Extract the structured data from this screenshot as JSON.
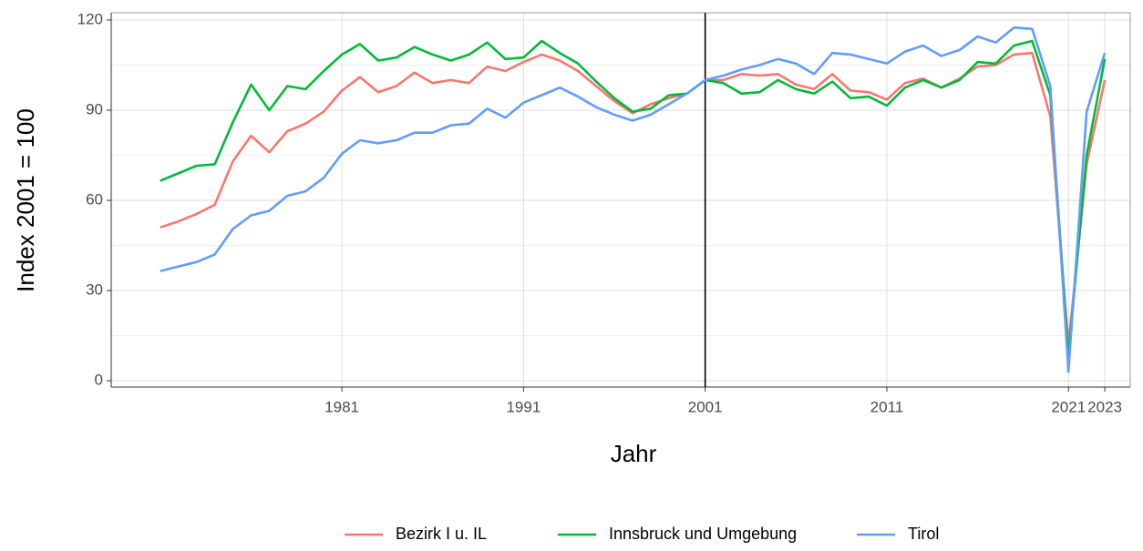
{
  "chart_data": {
    "type": "line",
    "x_label": "Jahr",
    "y_label": "Index 2001 = 100",
    "x": [
      1971,
      1972,
      1973,
      1974,
      1975,
      1976,
      1977,
      1978,
      1979,
      1980,
      1981,
      1982,
      1983,
      1984,
      1985,
      1986,
      1987,
      1988,
      1989,
      1990,
      1991,
      1992,
      1993,
      1994,
      1995,
      1996,
      1997,
      1998,
      1999,
      2000,
      2001,
      2002,
      2003,
      2004,
      2005,
      2006,
      2007,
      2008,
      2009,
      2010,
      2011,
      2012,
      2013,
      2014,
      2015,
      2016,
      2017,
      2018,
      2019,
      2020,
      2021,
      2022,
      2023
    ],
    "series": [
      {
        "name": "Bezirk I u. IL",
        "color": "#f8766d",
        "values": [
          51,
          53,
          55.5,
          58.5,
          73,
          81.5,
          76,
          83,
          85.5,
          89.5,
          96.5,
          101,
          96,
          98,
          102.5,
          99,
          100,
          99,
          104.5,
          103,
          106,
          108.5,
          106.5,
          103,
          98,
          93,
          89,
          92,
          94,
          95.5,
          100,
          100,
          102,
          101.5,
          102,
          98.5,
          97,
          102,
          96.5,
          96,
          93.5,
          99,
          100.5,
          97.5,
          100.5,
          104.5,
          105,
          108.5,
          109,
          88,
          12,
          72,
          100
        ]
      },
      {
        "name": "Innsbruck und Umgebung",
        "color": "#00ba38",
        "values": [
          66.5,
          69,
          71.5,
          72,
          86,
          98.5,
          90,
          98,
          97,
          103,
          108.5,
          112,
          106.5,
          107.5,
          111,
          108.5,
          106.5,
          108.5,
          112.5,
          107,
          107.5,
          113,
          109,
          105.5,
          99.5,
          94,
          89.5,
          90.5,
          95,
          95.5,
          100,
          99,
          95.5,
          96,
          100,
          97,
          95.5,
          99.5,
          94,
          94.5,
          91.5,
          97.5,
          100,
          97.5,
          100,
          106,
          105.5,
          111.5,
          113,
          95,
          8,
          75,
          107
        ]
      },
      {
        "name": "Tirol",
        "color": "#619cff",
        "values": [
          36.5,
          38,
          39.5,
          42,
          50.5,
          55,
          56.5,
          61.5,
          63,
          67.5,
          75.5,
          80,
          79,
          80,
          82.5,
          82.5,
          85,
          85.5,
          90.5,
          87.5,
          92.5,
          95,
          97.5,
          94.5,
          91,
          88.5,
          86.5,
          88.5,
          92,
          95.5,
          100,
          101.5,
          103.5,
          105,
          107,
          105.5,
          102,
          109,
          108.5,
          107,
          105.5,
          109.5,
          111.5,
          108,
          110,
          114.5,
          112.5,
          117.5,
          117,
          98,
          3,
          89.5,
          109
        ]
      }
    ],
    "xlim": [
      1968.3,
      2024.4
    ],
    "xticks": [
      1981,
      1991,
      2001,
      2011,
      2021,
      2023
    ],
    "ylim": [
      -2.1,
      122.4
    ],
    "yticks": [
      0,
      30,
      60,
      90,
      120
    ],
    "y_minor_ticks": [
      15,
      45,
      75,
      105
    ],
    "grid": true,
    "vline": 2001,
    "legend": "bottom"
  }
}
